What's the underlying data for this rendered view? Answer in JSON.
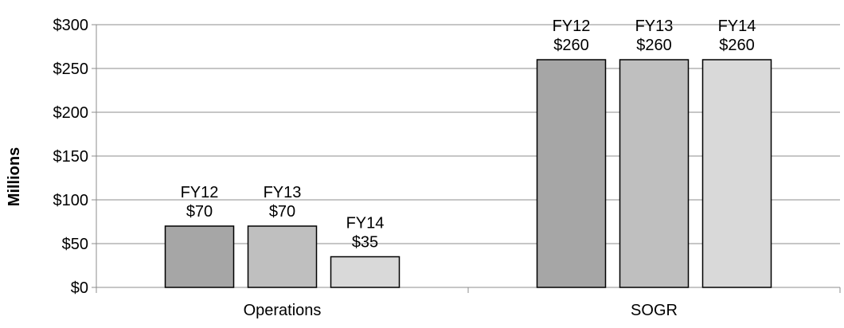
{
  "chart_data": {
    "type": "bar",
    "categories": [
      "Operations",
      "SOGR"
    ],
    "series": [
      {
        "name": "FY12",
        "values": [
          70,
          260
        ],
        "color": "#a6a6a6"
      },
      {
        "name": "FY13",
        "values": [
          70,
          260
        ],
        "color": "#bfbfbf"
      },
      {
        "name": "FY14",
        "values": [
          35,
          260
        ],
        "color": "#d9d9d9"
      }
    ],
    "data_labels": [
      [
        "FY12\n$70",
        "FY13\n$70",
        "FY14\n$35"
      ],
      [
        "FY12\n$260",
        "FY13\n$260",
        "FY14\n$260"
      ]
    ],
    "ylabel": "Millions",
    "ylim": [
      0,
      300
    ],
    "yticks": [
      0,
      50,
      100,
      150,
      200,
      250,
      300
    ],
    "ytick_labels": [
      "$0",
      "$50",
      "$100",
      "$150",
      "$200",
      "$250",
      "$300"
    ],
    "grid": true,
    "legend": "none",
    "colors": {
      "bar_stroke": "#000000",
      "grid": "#8c8c8c",
      "axis": "#8c8c8c"
    }
  }
}
